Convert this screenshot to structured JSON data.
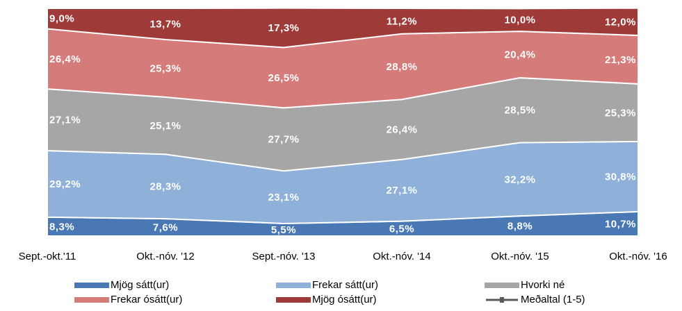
{
  "chart_data": {
    "type": "stacked_area",
    "categories": [
      "Sept.-okt.'11",
      "Okt.-nóv. '12",
      "Sept.-nóv. '13",
      "Okt.-nóv. '14",
      "Okt.-nóv. '15",
      "Okt.-nóv. '16"
    ],
    "ylim": [
      0,
      100
    ],
    "series": [
      {
        "name": "Mjög sátt(ur)",
        "color": "#4a78b4",
        "values": [
          8.3,
          7.6,
          5.5,
          6.5,
          8.8,
          10.7
        ],
        "value_labels": [
          "8,3%",
          "7,6%",
          "5,5%",
          "6,5%",
          "8,8%",
          "10,7%"
        ]
      },
      {
        "name": "Frekar sátt(ur)",
        "color": "#8fb0d9",
        "values": [
          29.2,
          28.3,
          23.1,
          27.1,
          32.2,
          30.8
        ],
        "value_labels": [
          "29,2%",
          "28,3%",
          "23,1%",
          "27,1%",
          "32,2%",
          "30,8%"
        ]
      },
      {
        "name": "Hvorki né",
        "color": "#a6a6a6",
        "values": [
          27.1,
          25.1,
          27.7,
          26.4,
          28.5,
          25.3
        ],
        "value_labels": [
          "27,1%",
          "25,1%",
          "27,7%",
          "26,4%",
          "28,5%",
          "25,3%"
        ]
      },
      {
        "name": "Frekar ósátt(ur)",
        "color": "#d57b79",
        "values": [
          26.4,
          25.3,
          26.5,
          28.8,
          20.4,
          21.3
        ],
        "value_labels": [
          "26,4%",
          "25,3%",
          "26,5%",
          "28,8%",
          "20,4%",
          "21,3%"
        ]
      },
      {
        "name": "Mjög ósátt(ur)",
        "color": "#9e3b39",
        "values": [
          9.0,
          13.7,
          17.3,
          11.2,
          10.0,
          12.0
        ],
        "value_labels": [
          "9,0%",
          "13,7%",
          "17,3%",
          "11,2%",
          "10,0%",
          "12,0%"
        ]
      },
      {
        "name": "Meðaltal (1-5)",
        "color": "#595959",
        "type": "line",
        "values": [
          null,
          null,
          null,
          null,
          null,
          null
        ]
      }
    ],
    "legend": "bottom"
  }
}
